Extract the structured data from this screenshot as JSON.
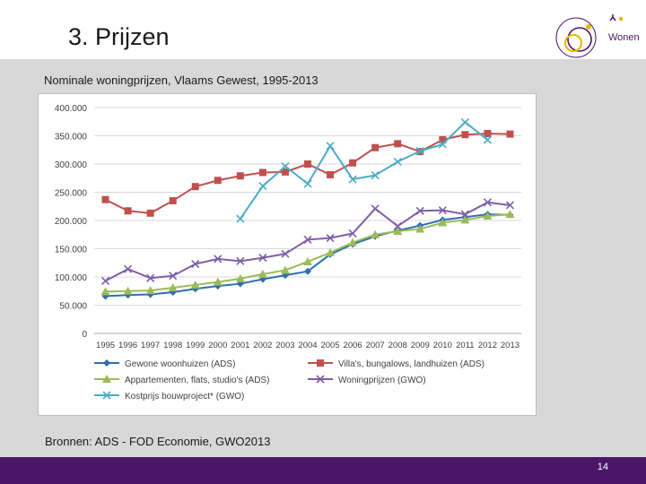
{
  "slide": {
    "title": "3. Prijzen",
    "subtitle": "Nominale woningprijzen, Vlaams Gewest, 1995-2013",
    "source": "Bronnen: ADS - FOD Economie, GWO2013",
    "page_number": "14",
    "logo_text": "Wonen",
    "colors": {
      "footer": "#4b1669",
      "background_band": "#d8d8d8"
    }
  },
  "chart_data": {
    "type": "line",
    "title": "",
    "xlabel": "",
    "ylabel": "",
    "ylim": [
      0,
      400000
    ],
    "y_ticks": [
      "0",
      "50.000",
      "100.000",
      "150.000",
      "200.000",
      "250.000",
      "300.000",
      "350.000",
      "400.000"
    ],
    "y_tick_values": [
      0,
      50000,
      100000,
      150000,
      200000,
      250000,
      300000,
      350000,
      400000
    ],
    "grid": "horizontal",
    "legend_position": "bottom",
    "categories": [
      "1995",
      "1996",
      "1997",
      "1998",
      "1999",
      "2000",
      "2001",
      "2002",
      "2003",
      "2004",
      "2005",
      "2006",
      "2007",
      "2008",
      "2009",
      "2010",
      "2011",
      "2012",
      "2013"
    ],
    "series": [
      {
        "name": "Gewone woonhuizen (ADS)",
        "color": "#2e6fb0",
        "marker": "diamond",
        "values": [
          66000,
          68000,
          69000,
          73000,
          79000,
          84000,
          88000,
          96000,
          103000,
          110000,
          140000,
          158000,
          172000,
          182000,
          191000,
          201000,
          206000,
          211000,
          210000
        ]
      },
      {
        "name": "Villa's, bungalows, landhuizen (ADS)",
        "color": "#c0504d",
        "marker": "square",
        "values": [
          237000,
          217000,
          213000,
          235000,
          260000,
          271000,
          279000,
          285000,
          286000,
          300000,
          281000,
          302000,
          329000,
          336000,
          322000,
          343000,
          352000,
          354000,
          353000
        ]
      },
      {
        "name": "Appartementen, flats, studio's (ADS)",
        "color": "#9bbb59",
        "marker": "triangle",
        "values": [
          74000,
          75000,
          76000,
          81000,
          86000,
          91000,
          97000,
          105000,
          112000,
          127000,
          143000,
          161000,
          175000,
          181000,
          185000,
          196000,
          201000,
          208000,
          211000
        ]
      },
      {
        "name": "Woningprijzen (GWO)",
        "color": "#7f5ea6",
        "marker": "x",
        "values": [
          93000,
          114000,
          98000,
          102000,
          123000,
          132000,
          128000,
          134000,
          141000,
          166000,
          169000,
          177000,
          221000,
          190000,
          217000,
          218000,
          211000,
          232000,
          227000
        ]
      },
      {
        "name": "Kostprijs bouwproject* (GWO)",
        "color": "#4bacc6",
        "marker": "x",
        "values": [
          null,
          null,
          null,
          null,
          null,
          null,
          203000,
          261000,
          296000,
          265000,
          332000,
          273000,
          280000,
          304000,
          323000,
          335000,
          374000,
          343000,
          null
        ]
      }
    ]
  }
}
